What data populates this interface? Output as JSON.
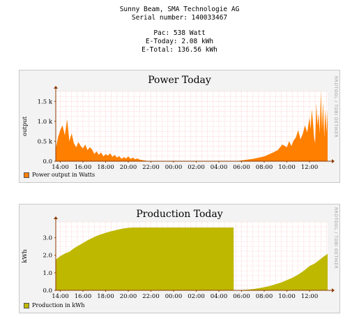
{
  "header": {
    "device_line": "Sunny Beam, SMA Technologie AG",
    "serial_line": "Serial number: 140033467",
    "pac_line": "Pac: 538 Watt",
    "etoday_line": "E-Today: 2.08 kWh",
    "etotal_line": "E-Total: 136.56 kWh"
  },
  "power_panel": {
    "title": "Power Today",
    "ylabel": "output",
    "legend": "Power output in Watts",
    "sidetext": "RRDTOOL / TOBI OETIKER"
  },
  "production_panel": {
    "title": "Production Today",
    "ylabel": "kWh",
    "legend": "Production in kWh",
    "sidetext": "RRDTOOL / TOBI OETIKER"
  },
  "chart_data": [
    {
      "type": "area",
      "title": "Power Today",
      "ylabel": "output",
      "color": "#ff7f00",
      "series": [
        {
          "name": "Power output in Watts"
        }
      ],
      "x_ticks": [
        "14:00",
        "16:00",
        "18:00",
        "20:00",
        "22:00",
        "00:00",
        "02:00",
        "04:00",
        "06:00",
        "08:00",
        "10:00",
        "12:00"
      ],
      "y_ticks": [
        "0.0",
        "0.5 k",
        "1.0 k",
        "1.5 k"
      ],
      "ylim": [
        0,
        1750
      ],
      "xlim_hours": [
        13.6,
        37.6
      ],
      "x_hours": [
        13.6,
        13.8,
        14.0,
        14.2,
        14.4,
        14.6,
        14.8,
        15.0,
        15.2,
        15.4,
        15.6,
        15.8,
        16.0,
        16.2,
        16.4,
        16.6,
        16.8,
        17.0,
        17.2,
        17.4,
        17.6,
        17.8,
        18.0,
        18.2,
        18.4,
        18.6,
        18.8,
        19.0,
        19.2,
        19.4,
        19.6,
        19.8,
        20.0,
        20.2,
        20.4,
        20.6,
        20.8,
        21.0,
        21.2,
        21.5,
        22.0,
        29.5,
        30.0,
        30.5,
        31.0,
        31.5,
        32.0,
        32.4,
        32.8,
        33.2,
        33.6,
        34.0,
        34.2,
        34.4,
        34.6,
        34.8,
        35.0,
        35.2,
        35.4,
        35.6,
        35.8,
        36.0,
        36.1,
        36.2,
        36.3,
        36.4,
        36.5,
        36.6,
        36.7,
        36.8,
        36.9,
        37.0,
        37.1,
        37.2,
        37.3,
        37.4,
        37.5,
        37.6
      ],
      "values": [
        300,
        600,
        780,
        900,
        650,
        1050,
        500,
        700,
        450,
        350,
        480,
        380,
        320,
        420,
        280,
        350,
        300,
        180,
        250,
        160,
        220,
        120,
        180,
        140,
        200,
        110,
        160,
        90,
        130,
        60,
        100,
        70,
        120,
        60,
        90,
        50,
        70,
        40,
        30,
        15,
        0,
        0,
        20,
        40,
        60,
        90,
        120,
        170,
        220,
        280,
        420,
        350,
        500,
        380,
        520,
        600,
        780,
        550,
        680,
        900,
        720,
        1100,
        800,
        1300,
        1000,
        600,
        450,
        1450,
        900,
        1200,
        700,
        1750,
        800,
        1500,
        600,
        1300,
        700,
        1300
      ]
    },
    {
      "type": "area",
      "title": "Production Today",
      "ylabel": "kWh",
      "color": "#bfb800",
      "series": [
        {
          "name": "Production in kWh"
        }
      ],
      "x_ticks": [
        "14:00",
        "16:00",
        "18:00",
        "20:00",
        "22:00",
        "00:00",
        "02:00",
        "04:00",
        "06:00",
        "08:00",
        "10:00",
        "12:00"
      ],
      "y_ticks": [
        "0.0",
        "1.0",
        "2.0",
        "3.0"
      ],
      "ylim": [
        0,
        3.9
      ],
      "xlim_hours": [
        13.6,
        37.6
      ],
      "x_hours": [
        13.6,
        13.8,
        14.0,
        14.4,
        14.8,
        15.2,
        15.6,
        16.0,
        16.4,
        16.8,
        17.2,
        17.6,
        18.0,
        18.4,
        18.8,
        19.2,
        19.6,
        20.0,
        20.4,
        29.3,
        29.31,
        29.5,
        30.0,
        30.5,
        31.0,
        31.5,
        32.0,
        32.5,
        33.0,
        33.5,
        34.0,
        34.5,
        35.0,
        35.5,
        36.0,
        36.5,
        37.0,
        37.3,
        37.6
      ],
      "values": [
        1.75,
        1.85,
        1.95,
        2.1,
        2.2,
        2.4,
        2.55,
        2.7,
        2.85,
        2.98,
        3.1,
        3.2,
        3.28,
        3.35,
        3.42,
        3.48,
        3.53,
        3.56,
        3.58,
        3.58,
        0.0,
        0.01,
        0.02,
        0.04,
        0.07,
        0.12,
        0.18,
        0.25,
        0.35,
        0.45,
        0.58,
        0.72,
        0.9,
        1.12,
        1.38,
        1.55,
        1.8,
        1.95,
        2.08
      ]
    }
  ]
}
